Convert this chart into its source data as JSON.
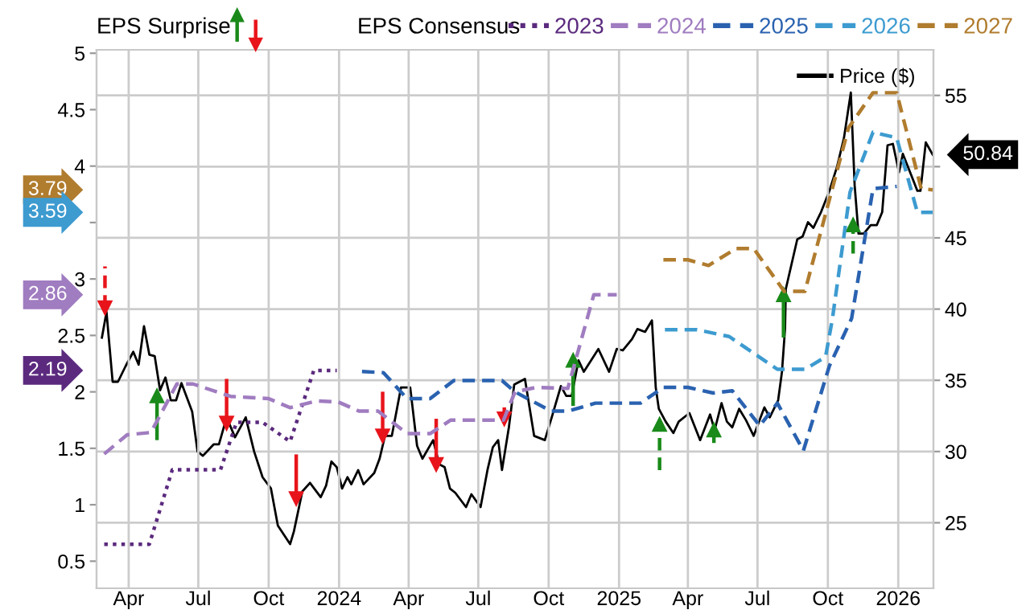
{
  "chart_data": {
    "type": "line",
    "legend_title": "EPS Consensus",
    "annotations": [
      "EPS Surprise",
      "3.79",
      "3.59",
      "2.86",
      "2.19"
    ],
    "xlim": [
      "2023-02-18",
      "2026-02-16"
    ],
    "xticks": [
      {
        "value": "2023-04-01",
        "label": "Apr"
      },
      {
        "value": "2023-07-01",
        "label": "Jul"
      },
      {
        "value": "2023-10-01",
        "label": "Oct"
      },
      {
        "value": "2024-01-01",
        "label": "2024"
      },
      {
        "value": "2024-04-01",
        "label": "Apr"
      },
      {
        "value": "2024-07-01",
        "label": "Jul"
      },
      {
        "value": "2024-10-01",
        "label": "Oct"
      },
      {
        "value": "2025-01-01",
        "label": "2025"
      },
      {
        "value": "2025-04-01",
        "label": "Apr"
      },
      {
        "value": "2025-07-01",
        "label": "Jul"
      },
      {
        "value": "2025-10-01",
        "label": "Oct"
      },
      {
        "value": "2026-01-01",
        "label": "2026"
      }
    ],
    "ylim": [
      0.26,
      5.03
    ],
    "yticks": [
      0.5,
      1,
      1.5,
      2,
      2.5,
      3,
      {
        "value": 3.5,
        "label": null
      },
      4,
      4.5,
      5
    ],
    "y2lim": [
      20.4,
      58.2
    ],
    "y2ticks": [
      25,
      30,
      35,
      40,
      45,
      {
        "value": 50,
        "label": null
      },
      55
    ],
    "grid": true,
    "legend": "top",
    "series": [
      {
        "name": "2023",
        "color": "#5b2a7e",
        "line_style": "dotted",
        "x": [
          "2023-02-28",
          "2023-04-28",
          "2023-05-28",
          "2023-07-30",
          "2023-08-20",
          "2023-09-23",
          "2023-10-29",
          "2023-11-29",
          "2023-12-29"
        ],
        "values": [
          0.65,
          0.65,
          1.31,
          1.31,
          1.73,
          1.73,
          1.56,
          2.19,
          2.19
        ]
      },
      {
        "name": "2024",
        "color": "#a07cc0",
        "line_style": "dashed",
        "x": [
          "2023-02-28",
          "2023-03-30",
          "2023-04-30",
          "2023-06-03",
          "2023-06-24",
          "2023-08-12",
          "2023-10-01",
          "2023-10-29",
          "2023-12-03",
          "2023-12-31",
          "2024-01-27",
          "2024-02-21",
          "2024-03-30",
          "2024-04-29",
          "2024-05-26",
          "2024-08-03",
          "2024-08-18",
          "2024-09-15",
          "2024-10-26",
          "2024-11-29",
          "2024-12-29"
        ],
        "values": [
          1.45,
          1.62,
          1.64,
          2.07,
          2.07,
          1.96,
          1.94,
          1.86,
          1.92,
          1.91,
          1.83,
          1.83,
          1.63,
          1.63,
          1.75,
          1.75,
          2.0,
          2.04,
          2.03,
          2.86,
          2.86
        ]
      },
      {
        "name": "2025",
        "color": "#2a62b0",
        "line_style": "dashed",
        "x": [
          "2024-01-31",
          "2024-02-28",
          "2024-03-30",
          "2024-04-29",
          "2024-05-30",
          "2024-08-01",
          "2024-08-18",
          "2024-10-04",
          "2024-10-27",
          "2024-12-01",
          "2025-01-29",
          "2025-02-28",
          "2025-04-01",
          "2025-05-04",
          "2025-05-29",
          "2025-07-04",
          "2025-07-27",
          "2025-08-30",
          "2025-10-03",
          "2025-11-01",
          "2025-11-29",
          "2025-12-30"
        ],
        "values": [
          2.18,
          2.17,
          1.94,
          1.94,
          2.1,
          2.1,
          2.0,
          1.83,
          1.83,
          1.9,
          1.9,
          2.04,
          2.04,
          1.99,
          2.01,
          1.7,
          1.9,
          1.48,
          2.23,
          2.65,
          3.8,
          3.82
        ]
      },
      {
        "name": "2026",
        "color": "#3d9bd0",
        "line_style": "dashed",
        "x": [
          "2025-03-02",
          "2025-04-13",
          "2025-05-25",
          "2025-07-27",
          "2025-09-01",
          "2025-09-28",
          "2025-10-07",
          "2025-10-30",
          "2025-11-29",
          "2025-12-30",
          "2026-01-26",
          "2026-02-15"
        ],
        "values": [
          2.55,
          2.55,
          2.49,
          2.2,
          2.2,
          2.31,
          2.65,
          3.77,
          4.3,
          4.25,
          3.59,
          3.59
        ]
      },
      {
        "name": "2027",
        "color": "#b07c2e",
        "line_style": "dashed",
        "x": [
          "2025-02-28",
          "2025-04-01",
          "2025-04-28",
          "2025-06-03",
          "2025-06-26",
          "2025-08-05",
          "2025-09-01",
          "2025-10-28",
          "2025-11-29",
          "2025-12-30",
          "2026-01-31",
          "2026-02-15"
        ],
        "values": [
          3.17,
          3.17,
          3.12,
          3.27,
          3.27,
          2.89,
          2.89,
          4.34,
          4.65,
          4.65,
          3.8,
          3.79
        ]
      },
      {
        "name": "Price ($)",
        "color": "#000000",
        "axis": "y2",
        "line_style": "solid",
        "x": [
          "2023-02-25",
          "2023-03-03",
          "2023-03-11",
          "2023-03-18",
          "2023-03-28",
          "2023-04-07",
          "2023-04-14",
          "2023-04-21",
          "2023-04-28",
          "2023-05-05",
          "2023-05-12",
          "2023-05-19",
          "2023-05-26",
          "2023-06-02",
          "2023-06-09",
          "2023-06-23",
          "2023-06-30",
          "2023-07-07",
          "2023-07-21",
          "2023-07-28",
          "2023-08-07",
          "2023-08-18",
          "2023-09-01",
          "2023-09-12",
          "2023-09-23",
          "2023-10-04",
          "2023-10-13",
          "2023-10-29",
          "2023-11-03",
          "2023-11-14",
          "2023-11-24",
          "2023-12-08",
          "2023-12-15",
          "2023-12-22",
          "2023-12-29",
          "2024-01-05",
          "2024-01-12",
          "2024-01-17",
          "2024-01-26",
          "2024-02-02",
          "2024-02-16",
          "2024-02-23",
          "2024-03-01",
          "2024-03-10",
          "2024-03-22",
          "2024-04-03",
          "2024-04-12",
          "2024-04-19",
          "2024-05-03",
          "2024-05-11",
          "2024-05-18",
          "2024-05-25",
          "2024-06-01",
          "2024-06-15",
          "2024-06-22",
          "2024-07-04",
          "2024-07-13",
          "2024-07-20",
          "2024-07-27",
          "2024-08-01",
          "2024-08-10",
          "2024-08-17",
          "2024-08-31",
          "2024-09-12",
          "2024-09-26",
          "2024-10-05",
          "2024-10-17",
          "2024-10-24",
          "2024-10-31",
          "2024-11-09",
          "2024-11-16",
          "2024-12-05",
          "2024-12-19",
          "2024-12-29",
          "2025-01-06",
          "2025-01-18",
          "2025-01-25",
          "2025-02-04",
          "2025-02-13",
          "2025-02-18",
          "2025-02-22",
          "2025-03-03",
          "2025-03-13",
          "2025-03-20",
          "2025-04-03",
          "2025-04-17",
          "2025-04-30",
          "2025-05-06",
          "2025-05-15",
          "2025-05-22",
          "2025-05-29",
          "2025-06-07",
          "2025-06-16",
          "2025-06-26",
          "2025-07-10",
          "2025-07-17",
          "2025-07-28",
          "2025-08-02",
          "2025-08-06",
          "2025-08-07",
          "2025-08-22",
          "2025-08-29",
          "2025-09-05",
          "2025-09-12",
          "2025-09-22",
          "2025-10-03",
          "2025-10-13",
          "2025-10-22",
          "2025-10-31",
          "2025-11-05",
          "2025-11-10",
          "2025-11-17",
          "2025-11-26",
          "2025-12-04",
          "2025-12-11",
          "2025-12-18",
          "2025-12-25",
          "2026-01-02",
          "2026-01-07",
          "2026-01-18",
          "2026-01-26",
          "2026-01-30",
          "2026-02-06",
          "2026-02-15"
        ],
        "values": [
          38.0,
          39.8,
          34.9,
          34.9,
          36.0,
          37.0,
          36.1,
          38.8,
          36.8,
          36.7,
          34.3,
          35.2,
          33.6,
          33.6,
          34.8,
          32.8,
          30.0,
          29.7,
          30.5,
          30.5,
          32.4,
          31.0,
          32.4,
          30.0,
          28.2,
          27.4,
          24.8,
          23.5,
          24.4,
          27.2,
          27.8,
          26.8,
          27.6,
          29.3,
          28.9,
          27.4,
          28.2,
          27.7,
          28.7,
          27.7,
          28.5,
          29.5,
          31.1,
          31.1,
          34.5,
          34.5,
          30.4,
          29.5,
          30.8,
          29.1,
          28.9,
          27.4,
          27.1,
          26.1,
          27.0,
          26.1,
          28.7,
          30.3,
          30.8,
          28.7,
          31.7,
          34.7,
          35.1,
          31.1,
          30.8,
          32.4,
          34.6,
          33.9,
          33.9,
          36.4,
          35.6,
          37.2,
          35.6,
          37.2,
          37.1,
          37.9,
          38.6,
          38.4,
          39.2,
          34.5,
          33.0,
          32.1,
          31.3,
          32.1,
          32.7,
          30.8,
          32.6,
          31.5,
          33.4,
          32.1,
          31.7,
          33.0,
          32.2,
          31.1,
          33.1,
          32.4,
          33.6,
          35.6,
          38.6,
          41.4,
          44.9,
          45.1,
          46.1,
          45.7,
          46.8,
          48.3,
          50.0,
          52.0,
          55.2,
          48.7,
          45.3,
          45.3,
          45.9,
          45.9,
          46.8,
          51.5,
          51.6,
          49.6,
          50.9,
          49.4,
          48.3,
          48.3,
          51.7,
          50.84
        ],
        "value_labels": [
          null,
          null,
          null,
          null,
          null,
          null,
          null,
          null,
          null,
          null,
          null,
          null,
          null,
          null,
          null,
          null,
          null,
          null,
          null,
          null,
          null,
          null,
          null,
          null,
          null,
          null,
          null,
          null,
          null,
          null,
          null,
          null,
          null,
          null,
          null,
          null,
          null,
          null,
          null,
          null,
          null,
          null,
          null,
          null,
          null,
          null,
          null,
          null,
          null,
          null,
          null,
          null,
          null,
          null,
          null,
          null,
          null,
          null,
          null,
          null,
          null,
          null,
          null,
          null,
          null,
          null,
          null,
          null,
          null,
          null,
          null,
          null,
          null,
          null,
          null,
          null,
          null,
          null,
          null,
          null,
          null,
          null,
          null,
          null,
          null,
          null,
          null,
          null,
          null,
          null,
          null,
          null,
          null,
          null,
          null,
          null,
          null,
          null,
          null,
          null,
          null,
          null,
          null,
          null,
          null,
          null,
          null,
          null,
          null,
          null,
          null,
          null,
          null,
          null,
          null,
          null,
          null,
          null,
          null,
          null,
          null,
          null,
          null,
          "50.84"
        ]
      },
      {
        "type": "scatter",
        "color": "#e8141b",
        "axis": "y2",
        "marker": "triangle",
        "line_style": "dashed",
        "x": [
          "2023-03-01"
        ],
        "values": [
          40.1
        ],
        "errors": [
          [
            40.1,
            43.0
          ]
        ]
      },
      {
        "type": "scatter",
        "color": "#e8141b",
        "axis": "y2",
        "marker": "triangle",
        "line_style": "solid",
        "x": [
          "2023-08-07",
          "2023-11-06",
          "2024-02-27",
          "2024-05-07",
          "2024-08-04"
        ],
        "values": [
          32.0,
          26.7,
          31.1,
          29.1,
          32.3
        ],
        "errors": [
          [
            32.0,
            35.1
          ],
          [
            26.7,
            29.8
          ],
          [
            31.1,
            34.2
          ],
          [
            29.1,
            32.3
          ],
          [
            32.3,
            33.1
          ]
        ]
      },
      {
        "type": "scatter",
        "color": "#1a8a1a",
        "axis": "y2",
        "marker": "triangle",
        "line_style": "solid",
        "x": [
          "2023-05-08",
          "2024-11-02",
          "2025-08-04"
        ],
        "values": [
          33.9,
          36.4,
          41.0
        ],
        "errors": [
          [
            30.8,
            33.9
          ],
          [
            33.2,
            36.4
          ],
          [
            38.0,
            41.0
          ]
        ]
      },
      {
        "type": "scatter",
        "color": "#1a8a1a",
        "axis": "y2",
        "marker": "triangle",
        "line_style": "dashed",
        "x": [
          "2025-02-23",
          "2025-05-05",
          "2025-11-03"
        ],
        "values": [
          31.9,
          31.5,
          45.9
        ],
        "errors": [
          [
            28.7,
            31.9
          ],
          [
            30.6,
            31.5
          ],
          [
            43.9,
            45.9
          ]
        ]
      }
    ]
  }
}
